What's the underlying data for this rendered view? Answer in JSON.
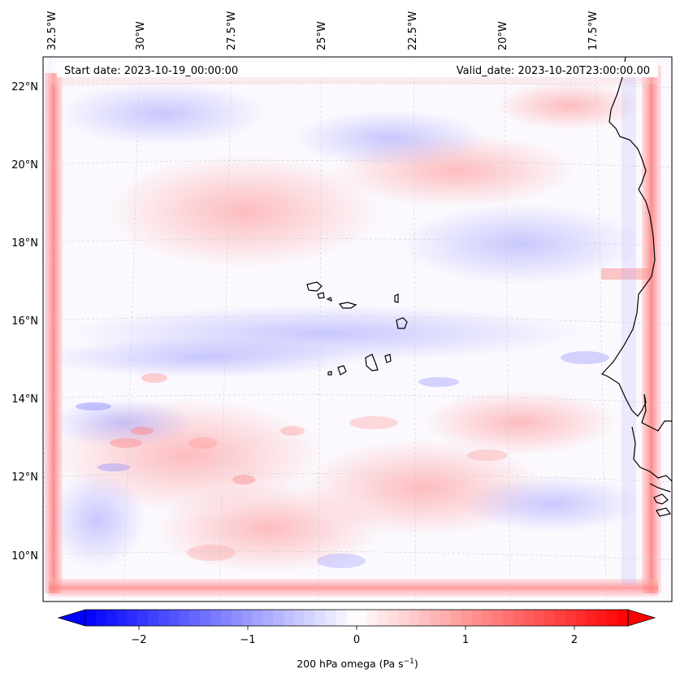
{
  "header": {
    "start_date": "Start date: 2023-10-19_00:00:00",
    "valid_date": "Valid_date: 2023-10-20T23:00:00.00"
  },
  "longitude_labels": [
    "32.5°W",
    "30°W",
    "27.5°W",
    "25°W",
    "22.5°W",
    "20°W",
    "17.5°W"
  ],
  "latitude_labels": [
    "22°N",
    "20°N",
    "18°N",
    "16°N",
    "14°N",
    "12°N",
    "10°N"
  ],
  "colorbar": {
    "ticks": [
      "−2",
      "−1",
      "0",
      "1",
      "2"
    ],
    "label_main": "200 hPa omega (Pa s",
    "label_sup": "−1",
    "label_end": ")",
    "min": -2.6,
    "max": 2.6,
    "low_color": "#0000ff",
    "mid_color": "#ffffff",
    "high_color": "#ff0000"
  },
  "colors": {
    "coast": "#000000",
    "grid": "#cccccc",
    "frame": "#000000"
  }
}
